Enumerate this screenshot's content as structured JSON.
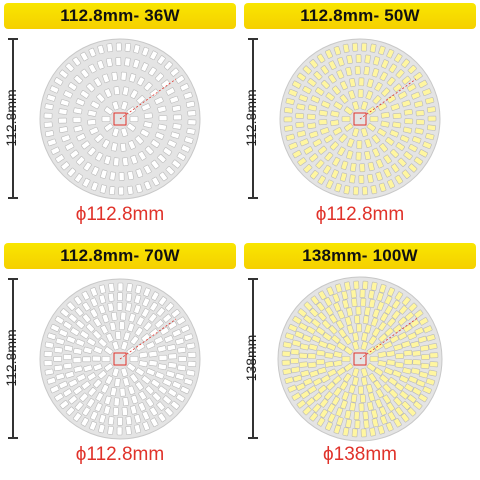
{
  "panels": [
    {
      "title": "112.8mm- 36W",
      "side_label": "112.8mm",
      "diameter_label": "ϕ112.8mm",
      "led_color": "#ffffff"
    },
    {
      "title": "112.8mm- 50W",
      "side_label": "112.8mm",
      "diameter_label": "ϕ112.8mm",
      "led_color": "#fff6a0"
    },
    {
      "title": "112.8mm- 70W",
      "side_label": "112.8mm",
      "diameter_label": "ϕ112.8mm",
      "led_color": "#ffffff"
    },
    {
      "title": "138mm- 100W",
      "side_label": "138mm",
      "diameter_label": "ϕ138mm",
      "led_color": "#fff6a0"
    }
  ],
  "colors": {
    "banner": "#f5d000",
    "diameter_text": "#e0322a",
    "board": "#e4e4e4"
  }
}
